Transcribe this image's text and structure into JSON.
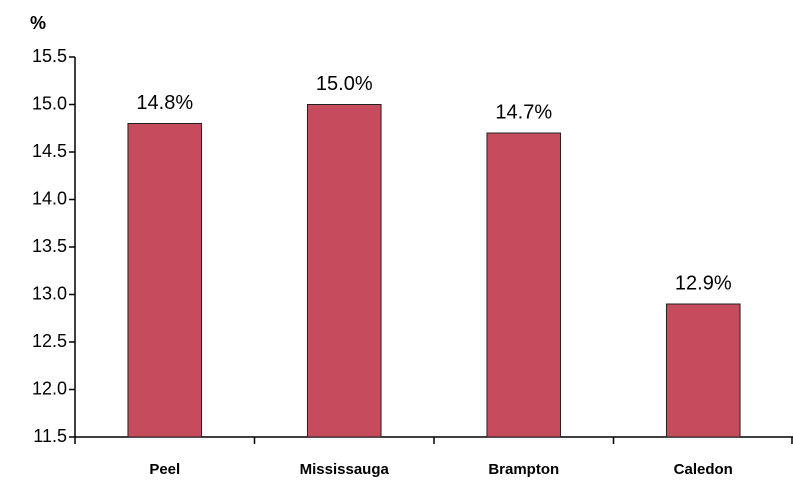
{
  "chart_data": {
    "type": "bar",
    "y_label": "%",
    "categories": [
      "Peel",
      "Mississauga",
      "Brampton",
      "Caledon"
    ],
    "values": [
      14.8,
      15.0,
      14.7,
      12.9
    ],
    "value_labels": [
      "14.8%",
      "15.0%",
      "14.7%",
      "12.9%"
    ],
    "color": "#c64b5c",
    "ylim": [
      11.5,
      15.5
    ],
    "yticks": [
      {
        "value": 11.5,
        "label": "11.5"
      },
      {
        "value": 12,
        "label": "12.0"
      },
      {
        "value": 12.5,
        "label": "12.5"
      },
      {
        "value": 13,
        "label": "13.0"
      },
      {
        "value": 13.5,
        "label": "13.5"
      },
      {
        "value": 14,
        "label": "14.0"
      },
      {
        "value": 14.5,
        "label": "14.5"
      },
      {
        "value": 15,
        "label": "15.0"
      },
      {
        "value": 15.5,
        "label": "15.5"
      }
    ],
    "grid": false
  }
}
